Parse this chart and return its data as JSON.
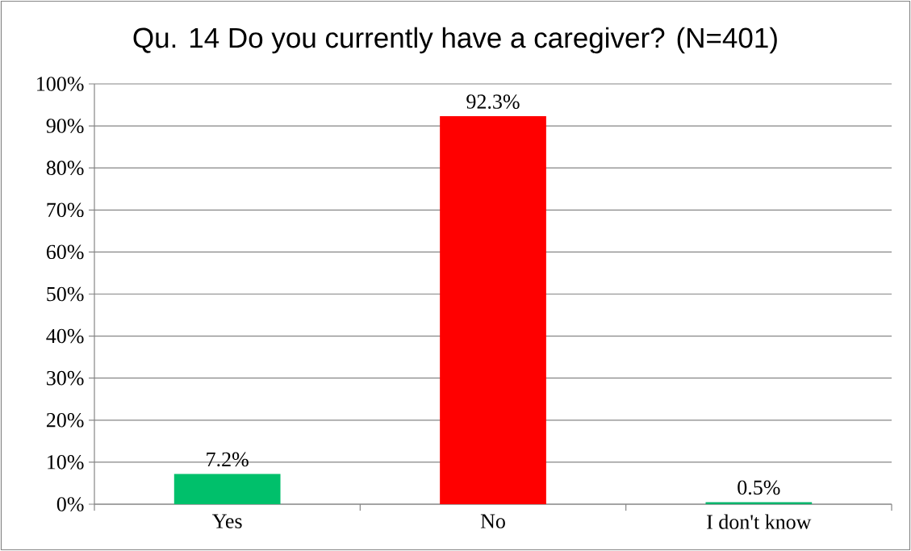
{
  "chart_data": {
    "type": "bar",
    "title": "Qu. 14  Do you currently have a caregiver?  (N=401)",
    "categories": [
      "Yes",
      "No",
      "I don't know"
    ],
    "values": [
      7.2,
      92.3,
      0.5
    ],
    "colors": [
      "#00c06b",
      "#ff0000",
      "#00b36b"
    ],
    "value_labels": [
      "7.2%",
      "92.3%",
      "0.5%"
    ],
    "ylim": [
      0,
      100
    ],
    "yticks": [
      {
        "value": 0,
        "label": "0%"
      },
      {
        "value": 10,
        "label": "10%"
      },
      {
        "value": 20,
        "label": "20%"
      },
      {
        "value": 30,
        "label": "30%"
      },
      {
        "value": 40,
        "label": "40%"
      },
      {
        "value": 50,
        "label": "50%"
      },
      {
        "value": 60,
        "label": "60%"
      },
      {
        "value": 70,
        "label": "70%"
      },
      {
        "value": 80,
        "label": "80%"
      },
      {
        "value": 90,
        "label": "90%"
      },
      {
        "value": 100,
        "label": "100%"
      }
    ],
    "grid": "y"
  }
}
